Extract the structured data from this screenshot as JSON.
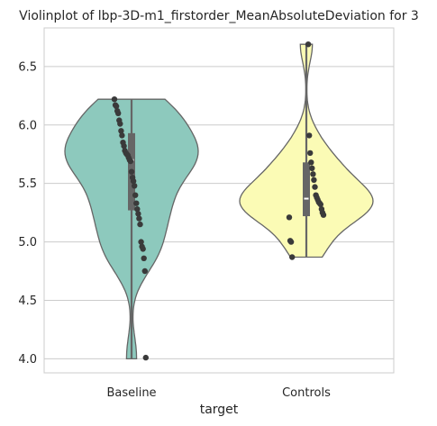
{
  "chart_data": {
    "type": "violin",
    "title": "Violinplot of lbp-3D-m1_firstorder_MeanAbsoluteDeviation for 3",
    "xlabel": "target",
    "ylabel": "",
    "categories": [
      "Baseline",
      "Controls"
    ],
    "yticks": [
      "4.0",
      "4.5",
      "5.0",
      "5.5",
      "6.0",
      "6.5"
    ],
    "ylim": [
      3.88,
      6.83
    ],
    "grid": true,
    "series": [
      {
        "category": "Baseline",
        "color": "#8dc9bd",
        "min": 4.0,
        "max": 6.22,
        "q1": 5.27,
        "median": 5.7,
        "q3": 5.93,
        "points": [
          6.22,
          6.17,
          6.16,
          6.12,
          6.1,
          6.04,
          6.01,
          5.95,
          5.91,
          5.85,
          5.82,
          5.78,
          5.76,
          5.75,
          5.74,
          5.72,
          5.7,
          5.69,
          5.6,
          5.55,
          5.52,
          5.48,
          5.4,
          5.33,
          5.28,
          5.24,
          5.2,
          5.15,
          5.0,
          4.96,
          4.94,
          4.86,
          4.75,
          4.01
        ]
      },
      {
        "category": "Controls",
        "color": "#fbfbb5",
        "min": 4.87,
        "max": 6.69,
        "q1": 5.22,
        "median": 5.37,
        "q3": 5.68,
        "points": [
          6.69,
          5.91,
          5.76,
          5.68,
          5.63,
          5.58,
          5.53,
          5.47,
          5.4,
          5.38,
          5.36,
          5.34,
          5.33,
          5.32,
          5.28,
          5.25,
          5.23,
          5.21,
          5.01,
          5.0,
          4.87
        ]
      }
    ]
  }
}
